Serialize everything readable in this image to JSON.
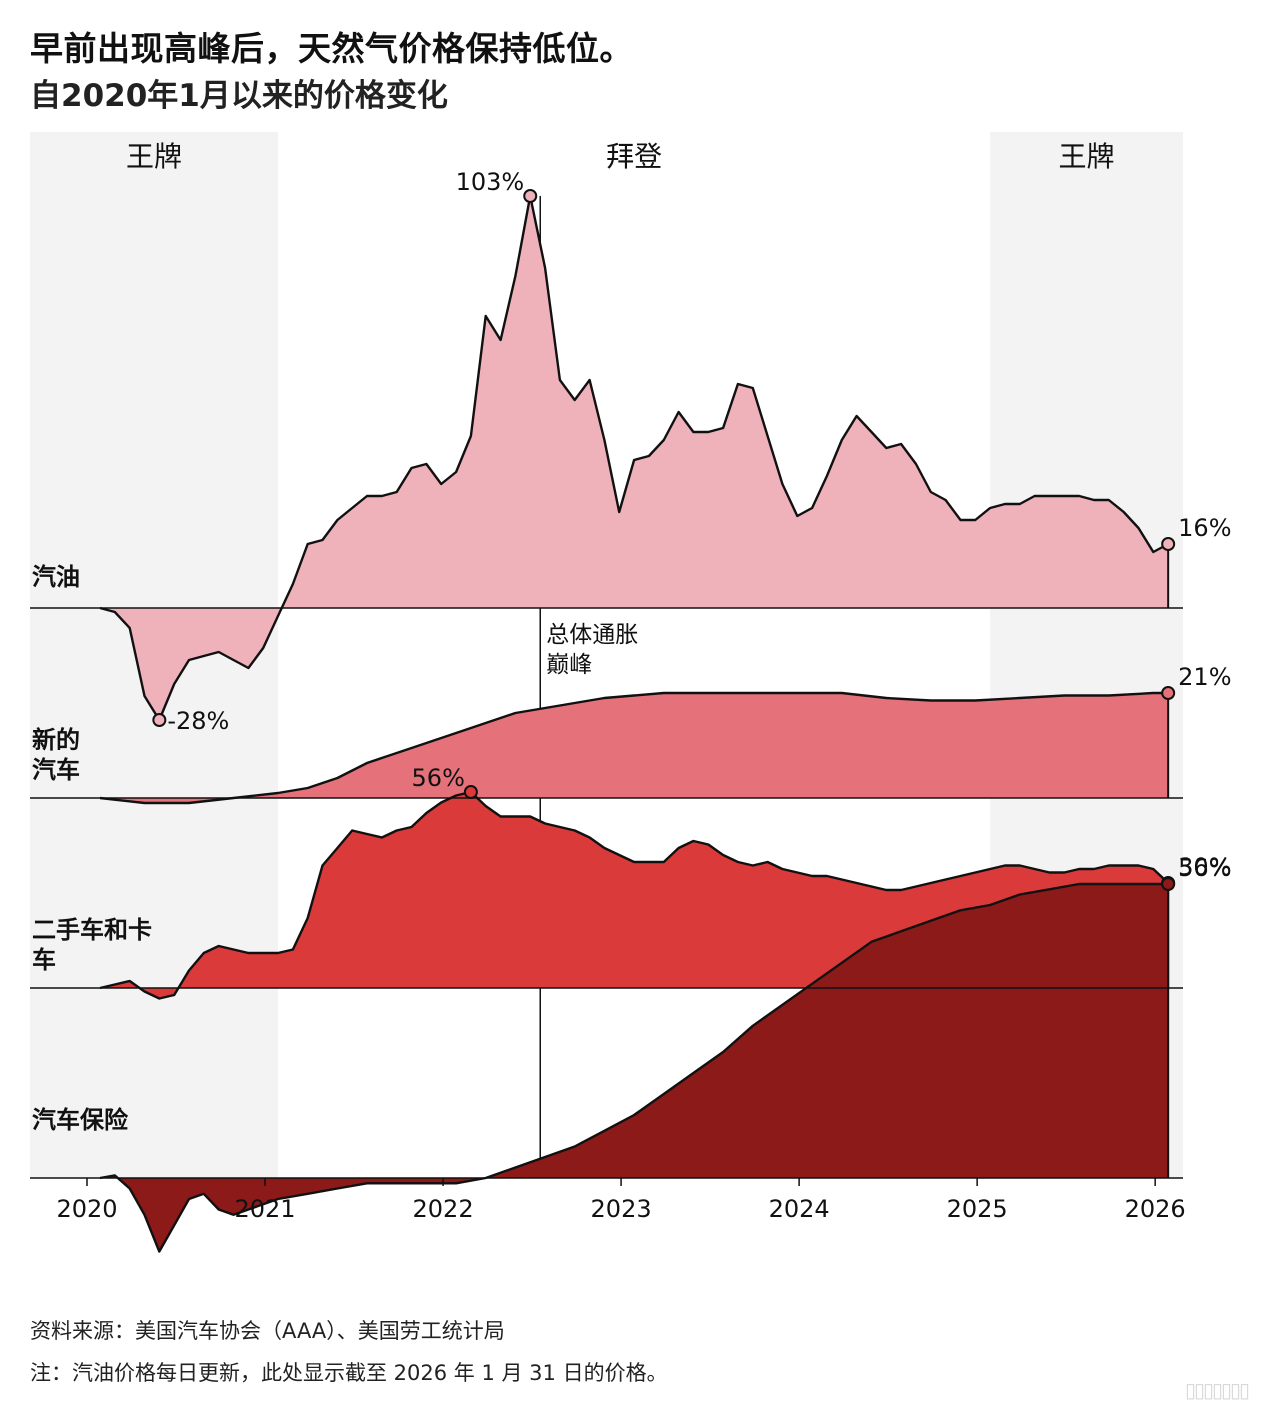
{
  "header": {
    "title": "早前出现高峰后，天然气价格保持低位。",
    "subtitle": "自2020年1月以来的价格变化"
  },
  "footer": {
    "source": "资料来源：美国汽车协会（AAA）、美国劳工统计局",
    "note": "注：汽油价格每日更新，此处显示截至 2026 年 1 月 31 日的价格。"
  },
  "watermark": "▯▯▯▯▯▯▯",
  "colors": {
    "gas": "#efb2bb",
    "new_cars": "#e5727b",
    "used_cars": "#da3a3a",
    "insurance": "#8b1a19",
    "term_shading": "#f3f3f3",
    "line": "#111111"
  },
  "chart_data": {
    "type": "area",
    "x_range": [
      "2020-01",
      "2026-02"
    ],
    "x_ticks": [
      "2020",
      "2021",
      "2022",
      "2023",
      "2024",
      "2025",
      "2026"
    ],
    "terms": [
      {
        "label": "王牌",
        "start": "2020-01",
        "end": "2021-01"
      },
      {
        "label": "拜登",
        "start": "2021-01",
        "end": "2025-01"
      },
      {
        "label": "王牌",
        "start": "2025-01",
        "end": "2026-02"
      }
    ],
    "event": {
      "label_line1": "总体通胀",
      "label_line2": "巅峰",
      "date": "2022-06"
    },
    "series": [
      {
        "name": "汽油",
        "unit": "%",
        "values": [
          [
            "2020-01",
            0
          ],
          [
            "2020-02",
            -1
          ],
          [
            "2020-03",
            -5
          ],
          [
            "2020-04",
            -22
          ],
          [
            "2020-05",
            -28
          ],
          [
            "2020-06",
            -19
          ],
          [
            "2020-07",
            -13
          ],
          [
            "2020-08",
            -12
          ],
          [
            "2020-09",
            -11
          ],
          [
            "2020-10",
            -13
          ],
          [
            "2020-11",
            -15
          ],
          [
            "2020-12",
            -10
          ],
          [
            "2021-01",
            -2
          ],
          [
            "2021-02",
            6
          ],
          [
            "2021-03",
            16
          ],
          [
            "2021-04",
            17
          ],
          [
            "2021-05",
            22
          ],
          [
            "2021-06",
            25
          ],
          [
            "2021-07",
            28
          ],
          [
            "2021-08",
            28
          ],
          [
            "2021-09",
            29
          ],
          [
            "2021-10",
            35
          ],
          [
            "2021-11",
            36
          ],
          [
            "2021-12",
            31
          ],
          [
            "2022-01",
            34
          ],
          [
            "2022-02",
            43
          ],
          [
            "2022-03",
            73
          ],
          [
            "2022-04",
            67
          ],
          [
            "2022-05",
            83
          ],
          [
            "2022-06",
            103
          ],
          [
            "2022-07",
            85
          ],
          [
            "2022-08",
            57
          ],
          [
            "2022-09",
            52
          ],
          [
            "2022-10",
            57
          ],
          [
            "2022-11",
            42
          ],
          [
            "2022-12",
            24
          ],
          [
            "2023-01",
            37
          ],
          [
            "2023-02",
            38
          ],
          [
            "2023-03",
            42
          ],
          [
            "2023-04",
            49
          ],
          [
            "2023-05",
            44
          ],
          [
            "2023-06",
            44
          ],
          [
            "2023-07",
            45
          ],
          [
            "2023-08",
            56
          ],
          [
            "2023-09",
            55
          ],
          [
            "2023-10",
            43
          ],
          [
            "2023-11",
            31
          ],
          [
            "2023-12",
            23
          ],
          [
            "2024-01",
            25
          ],
          [
            "2024-02",
            33
          ],
          [
            "2024-03",
            42
          ],
          [
            "2024-04",
            48
          ],
          [
            "2024-05",
            44
          ],
          [
            "2024-06",
            40
          ],
          [
            "2024-07",
            41
          ],
          [
            "2024-08",
            36
          ],
          [
            "2024-09",
            29
          ],
          [
            "2024-10",
            27
          ],
          [
            "2024-11",
            22
          ],
          [
            "2024-12",
            22
          ],
          [
            "2025-01",
            25
          ],
          [
            "2025-02",
            26
          ],
          [
            "2025-03",
            26
          ],
          [
            "2025-04",
            28
          ],
          [
            "2025-05",
            28
          ],
          [
            "2025-06",
            28
          ],
          [
            "2025-07",
            28
          ],
          [
            "2025-08",
            27
          ],
          [
            "2025-09",
            27
          ],
          [
            "2025-10",
            24
          ],
          [
            "2025-11",
            20
          ],
          [
            "2025-12",
            14
          ],
          [
            "2026-01",
            16
          ]
        ],
        "peak": {
          "label": "103%",
          "date": "2022-06",
          "value": 103
        },
        "trough": {
          "label": "-28%",
          "date": "2020-05",
          "value": -28
        },
        "last": {
          "label": "16%",
          "date": "2026-01",
          "value": 16
        }
      },
      {
        "name": "新的汽车",
        "label_line1": "新的",
        "label_line2": "汽车",
        "unit": "%",
        "values": [
          [
            "2020-01",
            0
          ],
          [
            "2020-04",
            -1
          ],
          [
            "2020-07",
            -1
          ],
          [
            "2020-10",
            0
          ],
          [
            "2021-01",
            1
          ],
          [
            "2021-03",
            2
          ],
          [
            "2021-05",
            4
          ],
          [
            "2021-07",
            7
          ],
          [
            "2021-09",
            9
          ],
          [
            "2021-11",
            11
          ],
          [
            "2022-01",
            13
          ],
          [
            "2022-03",
            15
          ],
          [
            "2022-05",
            17
          ],
          [
            "2022-07",
            18
          ],
          [
            "2022-09",
            19
          ],
          [
            "2022-11",
            20
          ],
          [
            "2023-01",
            20.5
          ],
          [
            "2023-03",
            21
          ],
          [
            "2023-06",
            21
          ],
          [
            "2023-09",
            21
          ],
          [
            "2023-12",
            21
          ],
          [
            "2024-03",
            21
          ],
          [
            "2024-06",
            20
          ],
          [
            "2024-09",
            19.5
          ],
          [
            "2024-12",
            19.5
          ],
          [
            "2025-03",
            20
          ],
          [
            "2025-06",
            20.5
          ],
          [
            "2025-09",
            20.5
          ],
          [
            "2025-12",
            21
          ],
          [
            "2026-01",
            21
          ]
        ],
        "last": {
          "label": "21%",
          "date": "2026-01",
          "value": 21
        }
      },
      {
        "name": "二手车和卡车",
        "label_line1": "二手车和卡",
        "label_line2": "车",
        "unit": "%",
        "values": [
          [
            "2020-01",
            0
          ],
          [
            "2020-02",
            1
          ],
          [
            "2020-03",
            2
          ],
          [
            "2020-04",
            -1
          ],
          [
            "2020-05",
            -3
          ],
          [
            "2020-06",
            -2
          ],
          [
            "2020-07",
            5
          ],
          [
            "2020-08",
            10
          ],
          [
            "2020-09",
            12
          ],
          [
            "2020-10",
            11
          ],
          [
            "2020-11",
            10
          ],
          [
            "2020-12",
            10
          ],
          [
            "2021-01",
            10
          ],
          [
            "2021-02",
            11
          ],
          [
            "2021-03",
            20
          ],
          [
            "2021-04",
            35
          ],
          [
            "2021-05",
            40
          ],
          [
            "2021-06",
            45
          ],
          [
            "2021-07",
            44
          ],
          [
            "2021-08",
            43
          ],
          [
            "2021-09",
            45
          ],
          [
            "2021-10",
            46
          ],
          [
            "2021-11",
            50
          ],
          [
            "2021-12",
            53
          ],
          [
            "2022-01",
            55
          ],
          [
            "2022-02",
            56
          ],
          [
            "2022-03",
            52
          ],
          [
            "2022-04",
            49
          ],
          [
            "2022-05",
            49
          ],
          [
            "2022-06",
            49
          ],
          [
            "2022-07",
            47
          ],
          [
            "2022-08",
            46
          ],
          [
            "2022-09",
            45
          ],
          [
            "2022-10",
            43
          ],
          [
            "2022-11",
            40
          ],
          [
            "2022-12",
            38
          ],
          [
            "2023-01",
            36
          ],
          [
            "2023-02",
            36
          ],
          [
            "2023-03",
            36
          ],
          [
            "2023-04",
            40
          ],
          [
            "2023-05",
            42
          ],
          [
            "2023-06",
            41
          ],
          [
            "2023-07",
            38
          ],
          [
            "2023-08",
            36
          ],
          [
            "2023-09",
            35
          ],
          [
            "2023-10",
            36
          ],
          [
            "2023-11",
            34
          ],
          [
            "2023-12",
            33
          ],
          [
            "2024-01",
            32
          ],
          [
            "2024-02",
            32
          ],
          [
            "2024-03",
            31
          ],
          [
            "2024-04",
            30
          ],
          [
            "2024-05",
            29
          ],
          [
            "2024-06",
            28
          ],
          [
            "2024-07",
            28
          ],
          [
            "2024-08",
            29
          ],
          [
            "2024-09",
            30
          ],
          [
            "2024-10",
            31
          ],
          [
            "2024-11",
            32
          ],
          [
            "2024-12",
            33
          ],
          [
            "2025-01",
            34
          ],
          [
            "2025-02",
            35
          ],
          [
            "2025-03",
            35
          ],
          [
            "2025-04",
            34
          ],
          [
            "2025-05",
            33
          ],
          [
            "2025-06",
            33
          ],
          [
            "2025-07",
            34
          ],
          [
            "2025-08",
            34
          ],
          [
            "2025-09",
            35
          ],
          [
            "2025-10",
            35
          ],
          [
            "2025-11",
            35
          ],
          [
            "2025-12",
            34
          ],
          [
            "2026-01",
            30
          ]
        ],
        "peak": {
          "label": "56%",
          "date": "2022-02",
          "value": 56
        },
        "last": {
          "label": "30%",
          "date": "2026-01",
          "value": 30
        }
      },
      {
        "name": "汽车保险",
        "unit": "%",
        "values": [
          [
            "2020-01",
            0
          ],
          [
            "2020-02",
            0.5
          ],
          [
            "2020-03",
            -2
          ],
          [
            "2020-04",
            -7
          ],
          [
            "2020-05",
            -14
          ],
          [
            "2020-06",
            -9
          ],
          [
            "2020-07",
            -4
          ],
          [
            "2020-08",
            -3
          ],
          [
            "2020-09",
            -6
          ],
          [
            "2020-10",
            -7
          ],
          [
            "2020-11",
            -6
          ],
          [
            "2020-12",
            -5
          ],
          [
            "2021-01",
            -4
          ],
          [
            "2021-03",
            -3
          ],
          [
            "2021-05",
            -2
          ],
          [
            "2021-07",
            -1
          ],
          [
            "2021-09",
            -1
          ],
          [
            "2021-11",
            -1
          ],
          [
            "2022-01",
            -1
          ],
          [
            "2022-03",
            0
          ],
          [
            "2022-05",
            2
          ],
          [
            "2022-07",
            4
          ],
          [
            "2022-09",
            6
          ],
          [
            "2022-11",
            9
          ],
          [
            "2023-01",
            12
          ],
          [
            "2023-03",
            16
          ],
          [
            "2023-05",
            20
          ],
          [
            "2023-07",
            24
          ],
          [
            "2023-09",
            29
          ],
          [
            "2023-11",
            33
          ],
          [
            "2024-01",
            37
          ],
          [
            "2024-03",
            41
          ],
          [
            "2024-05",
            45
          ],
          [
            "2024-07",
            47
          ],
          [
            "2024-09",
            49
          ],
          [
            "2024-11",
            51
          ],
          [
            "2025-01",
            52
          ],
          [
            "2025-03",
            54
          ],
          [
            "2025-05",
            55
          ],
          [
            "2025-07",
            56
          ],
          [
            "2025-09",
            56
          ],
          [
            "2025-11",
            56
          ],
          [
            "2026-01",
            56
          ]
        ],
        "last": {
          "label": "56%",
          "date": "2026-01",
          "value": 56
        }
      }
    ]
  }
}
